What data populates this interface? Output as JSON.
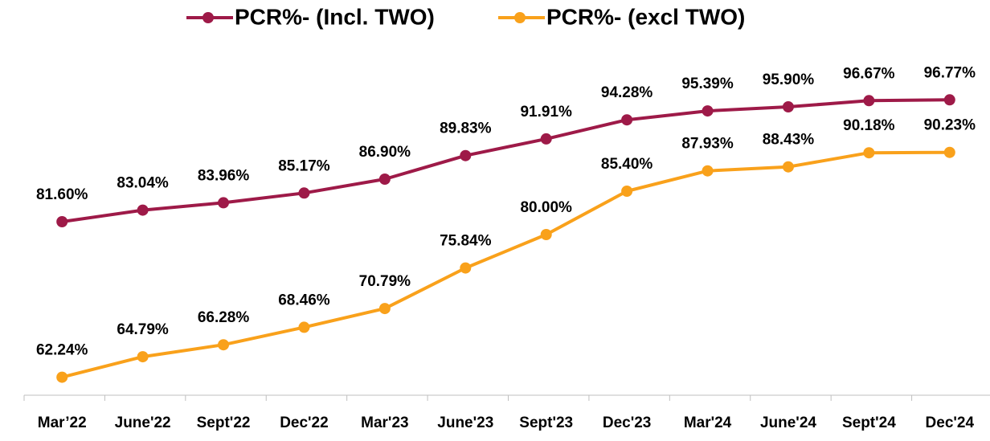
{
  "chart_data": {
    "type": "line",
    "categories": [
      "Mar’22",
      "June'22",
      "Sept'22",
      "Dec'22",
      "Mar'23",
      "June'23",
      "Sept'23",
      "Dec'23",
      "Mar'24",
      "June'24",
      "Sept'24",
      "Dec'24"
    ],
    "series": [
      {
        "name": "PCR%- (Incl. TWO)",
        "color": "#9e1a48",
        "values": [
          81.6,
          83.04,
          83.96,
          85.17,
          86.9,
          89.83,
          91.91,
          94.28,
          95.39,
          95.9,
          96.67,
          96.77
        ],
        "value_labels": [
          "81.60%",
          "83.04%",
          "83.96%",
          "85.17%",
          "86.90%",
          "89.83%",
          "91.91%",
          "94.28%",
          "95.39%",
          "95.90%",
          "96.67%",
          "96.77%"
        ]
      },
      {
        "name": "PCR%- (excl TWO)",
        "color": "#f9a11b",
        "values": [
          62.24,
          64.79,
          66.28,
          68.46,
          70.79,
          75.84,
          80.0,
          85.4,
          87.93,
          88.43,
          90.18,
          90.23
        ],
        "value_labels": [
          "62.24%",
          "64.79%",
          "66.28%",
          "68.46%",
          "70.79%",
          "75.84%",
          "80.00%",
          "85.40%",
          "87.93%",
          "88.43%",
          "90.18%",
          "90.23%"
        ]
      }
    ],
    "ylim": [
      60,
      100
    ],
    "legend": "top"
  }
}
